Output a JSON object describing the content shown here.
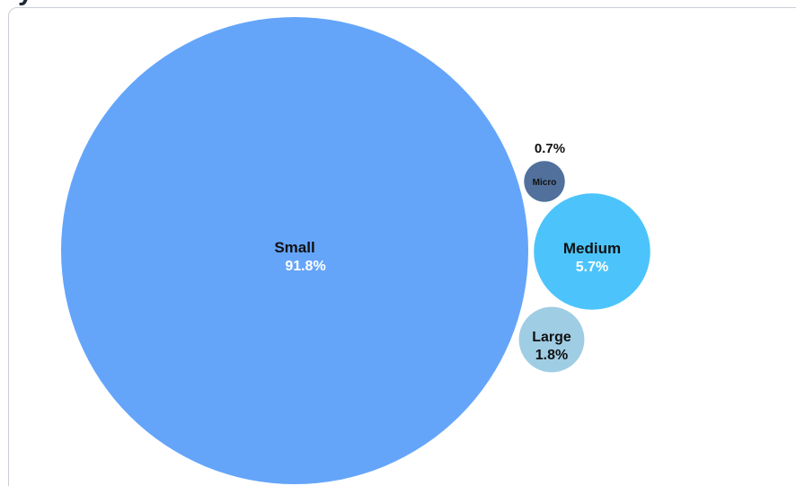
{
  "chart_data": {
    "type": "bubble",
    "title": "",
    "series": [
      {
        "name": "Small",
        "value": 91.8,
        "label": "91.8%",
        "color": "#64a5fa",
        "name_color": "#111111",
        "value_color": "#ffffff"
      },
      {
        "name": "Medium",
        "value": 5.7,
        "label": "5.7%",
        "color": "#4cc4fb",
        "name_color": "#111111",
        "value_color": "#ffffff"
      },
      {
        "name": "Large",
        "value": 1.8,
        "label": "1.8%",
        "color": "#9fcde4",
        "name_color": "#111111",
        "value_color": "#111111"
      },
      {
        "name": "Micro",
        "value": 0.7,
        "label": "0.7%",
        "color": "#51709c",
        "name_color": "#111111",
        "value_color": "#111111"
      }
    ],
    "legend": "none",
    "grid": false
  }
}
